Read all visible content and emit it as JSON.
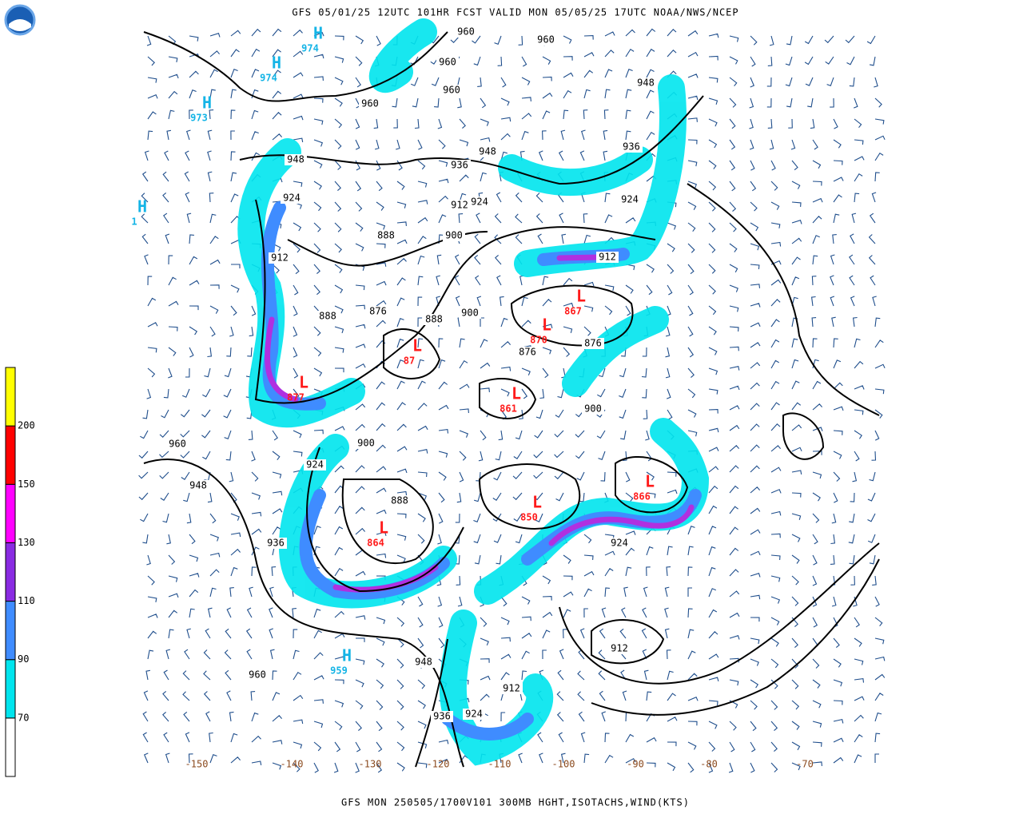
{
  "header": {
    "title": "GFS 05/01/25 12UTC 101HR FCST VALID MON 05/05/25 17UTC NOAA/NWS/NCEP"
  },
  "footer": {
    "text": "GFS MON 250505/1700V101 300MB HGHT,ISOTACHS,WIND(KTS)"
  },
  "legend": {
    "levels": [
      70,
      90,
      110,
      130,
      150,
      200
    ],
    "colors": [
      "#ffffff",
      "#00e5ee",
      "#3f8cff",
      "#8a2be2",
      "#ff00ff",
      "#ff0000",
      "#ffff00"
    ]
  },
  "contour_labels": [
    "960",
    "960",
    "960",
    "960",
    "960",
    "948",
    "948",
    "936",
    "936",
    "924",
    "924",
    "924",
    "912",
    "912",
    "912",
    "900",
    "900",
    "900",
    "888",
    "888",
    "888",
    "876",
    "876",
    "876",
    "948",
    "936",
    "924",
    "912",
    "960",
    "948",
    "936",
    "924",
    "912",
    "960",
    "948",
    "936",
    "900",
    "888",
    "924"
  ],
  "systems": [
    {
      "symbol": "L",
      "value": "877"
    },
    {
      "symbol": "L",
      "value": "864"
    },
    {
      "symbol": "L",
      "value": "87"
    },
    {
      "symbol": "L",
      "value": "870"
    },
    {
      "symbol": "L",
      "value": "867"
    },
    {
      "symbol": "L",
      "value": "866"
    },
    {
      "symbol": "L",
      "value": "850"
    },
    {
      "symbol": "L",
      "value": "861"
    },
    {
      "symbol": "H",
      "value": "974"
    },
    {
      "symbol": "H",
      "value": "974"
    },
    {
      "symbol": "H",
      "value": "973"
    },
    {
      "symbol": "H",
      "value": "959"
    },
    {
      "symbol": "H",
      "value": "1"
    }
  ],
  "longitudes": [
    "-150",
    "-140",
    "-130",
    "-120",
    "-110",
    "-100",
    "-90",
    "-80",
    "-70"
  ]
}
